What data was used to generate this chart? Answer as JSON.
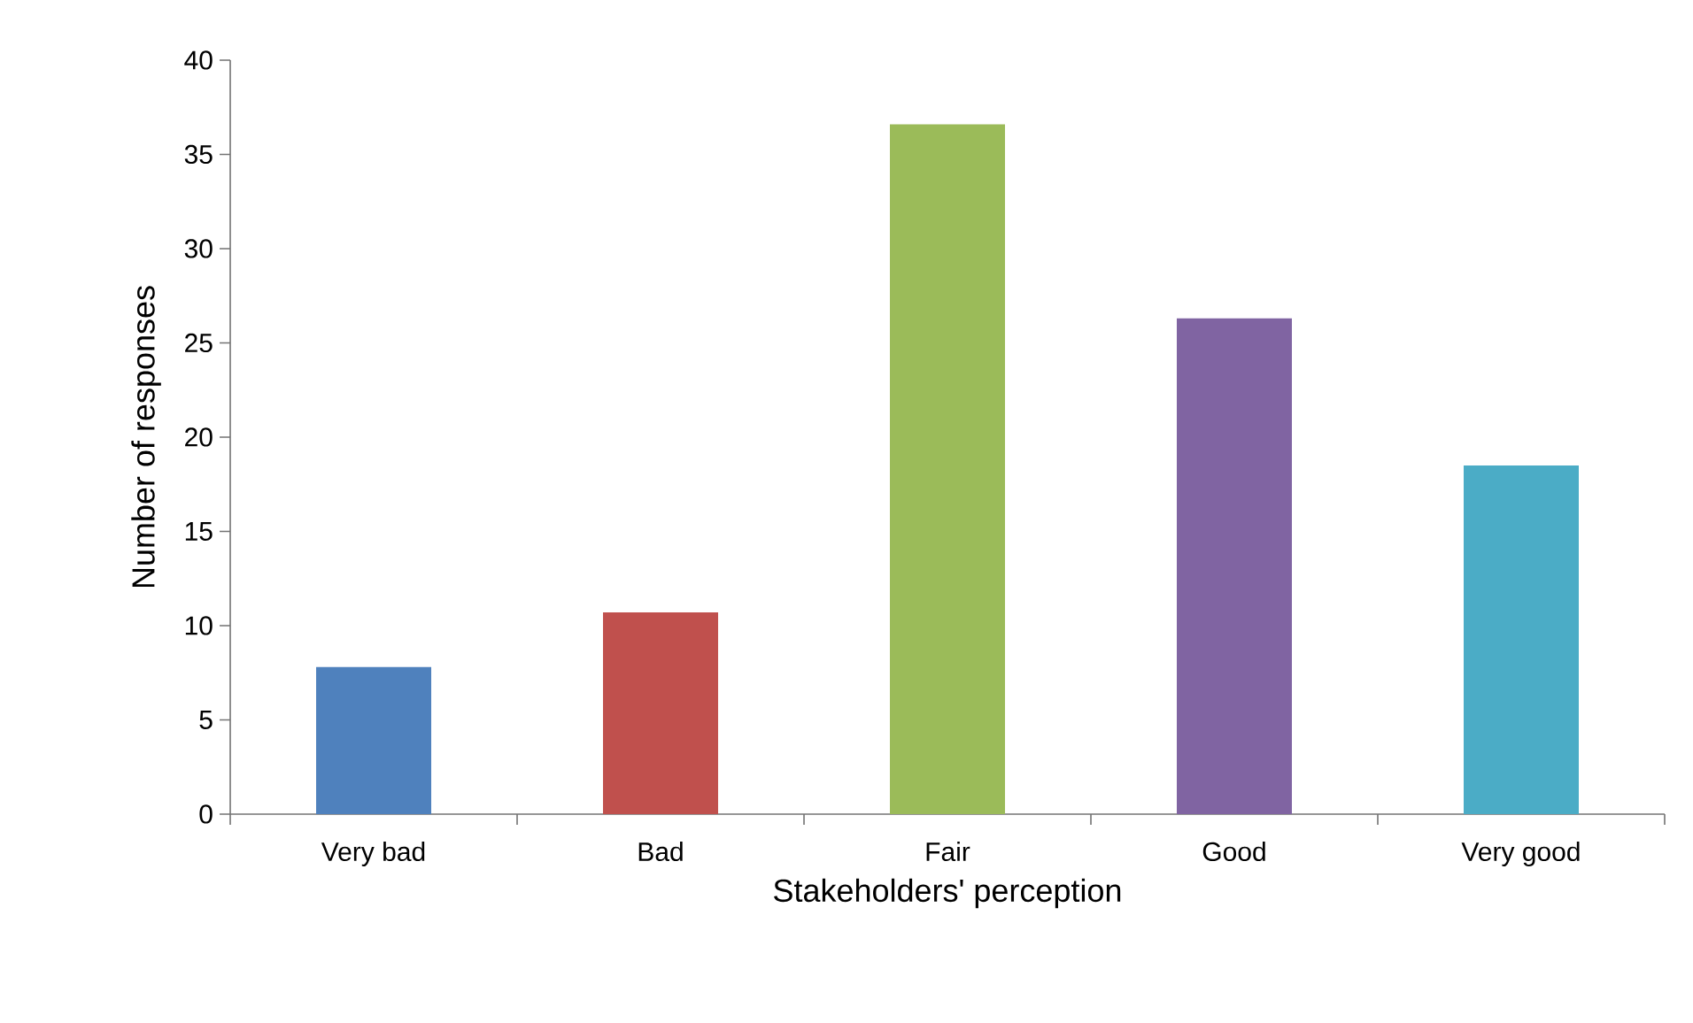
{
  "chart_data": {
    "type": "bar",
    "xlabel": "Stakeholders' perception",
    "ylabel": "Number of responses",
    "categories": [
      "Very bad",
      "Bad",
      "Fair",
      "Good",
      "Very good"
    ],
    "values": [
      7.8,
      10.7,
      36.6,
      26.3,
      18.5
    ],
    "colors": [
      "#4f81bd",
      "#c0504d",
      "#9bbb59",
      "#8064a2",
      "#4bacc6"
    ],
    "ylim": [
      0,
      40
    ],
    "yticks": [
      0,
      5,
      10,
      15,
      20,
      25,
      30,
      35,
      40
    ],
    "grid": false
  }
}
